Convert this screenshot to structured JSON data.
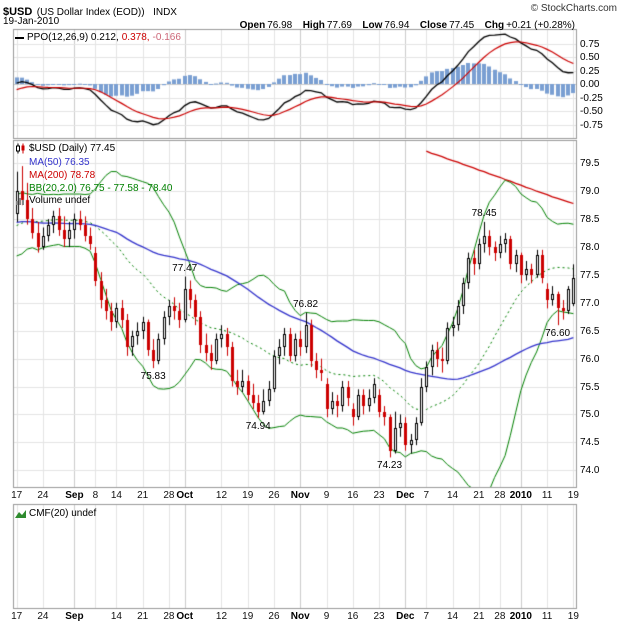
{
  "header": {
    "symbol": "$USD",
    "description": "(US Dollar Index (EOD))",
    "exchange": "INDX",
    "copyright": "© StockCharts.com",
    "date": "19-Jan-2010",
    "quote": {
      "open_label": "Open",
      "open": "76.98",
      "high_label": "High",
      "high": "77.69",
      "low_label": "Low",
      "low": "76.94",
      "close_label": "Close",
      "close": "77.45",
      "chg_label": "Chg",
      "chg": "+0.21 (+0.28%)"
    }
  },
  "ppo_panel": {
    "legend": "PPO(12,26,9) 0.212,",
    "legend_signal": "0.378,",
    "legend_hist": "-0.166"
  },
  "main_panel": {
    "legend_price": "$USD (Daily) 77.45",
    "legend_ma50": "MA(50) 76.35",
    "legend_ma200": "MA(200) 78.78",
    "legend_bb": "BB(20,2.0) 76.75 - 77.58 - 78.40",
    "legend_volume": "Volume undef"
  },
  "cmf_panel": {
    "legend": "CMF(20) undef"
  },
  "chart_data": {
    "type": "candlestick",
    "title": "$USD (US Dollar Index (EOD)) INDX",
    "price_axis": {
      "range": [
        73.7,
        79.9
      ],
      "ticks": [
        79.5,
        79.0,
        78.5,
        78.0,
        77.5,
        77.0,
        76.5,
        76.0,
        75.5,
        75.0,
        74.5,
        74.0
      ],
      "labels": [
        "79.5",
        "79.0",
        "78.5",
        "78.0",
        "77.5",
        "77.0",
        "76.5",
        "76.0",
        "75.5",
        "75.0",
        "74.5",
        "74.0"
      ]
    },
    "ppo_axis": {
      "range": [
        -1.0,
        1.0
      ],
      "ticks": [
        0.75,
        0.5,
        0.25,
        0,
        -0.25,
        -0.5,
        -0.75
      ],
      "labels": [
        "0.75",
        "0.50",
        "0.25",
        "0.00",
        "-0.25",
        "-0.50",
        "-0.75"
      ]
    },
    "x_axis": {
      "ticks": [
        {
          "i": 0,
          "t": "17"
        },
        {
          "i": 5,
          "t": "24"
        },
        {
          "i": 11,
          "t": "Sep",
          "m": 1
        },
        {
          "i": 15,
          "t": "8"
        },
        {
          "i": 19,
          "t": "14"
        },
        {
          "i": 24,
          "t": "21"
        },
        {
          "i": 29,
          "t": "28"
        },
        {
          "i": 32,
          "t": "Oct",
          "m": 1
        },
        {
          "i": 39,
          "t": "12"
        },
        {
          "i": 44,
          "t": "19"
        },
        {
          "i": 49,
          "t": "26"
        },
        {
          "i": 54,
          "t": "Nov",
          "m": 1
        },
        {
          "i": 59,
          "t": "9"
        },
        {
          "i": 64,
          "t": "16"
        },
        {
          "i": 69,
          "t": "23"
        },
        {
          "i": 74,
          "t": "Dec",
          "m": 1
        },
        {
          "i": 78,
          "t": "7"
        },
        {
          "i": 83,
          "t": "14"
        },
        {
          "i": 88,
          "t": "21"
        },
        {
          "i": 92,
          "t": "28"
        },
        {
          "i": 96,
          "t": "2010",
          "m": 1
        },
        {
          "i": 101,
          "t": "11"
        },
        {
          "i": 106,
          "t": "19"
        }
      ],
      "bottom_ticks": [
        {
          "i": 0,
          "t": "17"
        },
        {
          "i": 5,
          "t": "24"
        },
        {
          "i": 11,
          "t": "Sep",
          "m": 1
        },
        {
          "i": 19,
          "t": "14"
        },
        {
          "i": 24,
          "t": "21"
        },
        {
          "i": 29,
          "t": "28"
        },
        {
          "i": 32,
          "t": "Oct",
          "m": 1
        },
        {
          "i": 39,
          "t": "12"
        },
        {
          "i": 44,
          "t": "19"
        },
        {
          "i": 49,
          "t": "26"
        },
        {
          "i": 54,
          "t": "Nov",
          "m": 1
        },
        {
          "i": 59,
          "t": "9"
        },
        {
          "i": 64,
          "t": "16"
        },
        {
          "i": 69,
          "t": "23"
        },
        {
          "i": 74,
          "t": "Dec",
          "m": 1
        },
        {
          "i": 78,
          "t": "7"
        },
        {
          "i": 83,
          "t": "14"
        },
        {
          "i": 88,
          "t": "21"
        },
        {
          "i": 92,
          "t": "28"
        },
        {
          "i": 96,
          "t": "2010",
          "m": 1
        },
        {
          "i": 101,
          "t": "11"
        },
        {
          "i": 106,
          "t": "19"
        }
      ]
    },
    "candles": [
      [
        78.6,
        79.35,
        78.45,
        79.0
      ],
      [
        79.0,
        79.45,
        78.75,
        78.85
      ],
      [
        78.85,
        79.15,
        78.4,
        78.5
      ],
      [
        78.5,
        78.7,
        78.15,
        78.25
      ],
      [
        78.25,
        78.45,
        77.9,
        78.0
      ],
      [
        78.0,
        78.35,
        77.95,
        78.2
      ],
      [
        78.2,
        78.5,
        78.1,
        78.4
      ],
      [
        78.4,
        78.65,
        78.25,
        78.55
      ],
      [
        78.55,
        78.7,
        78.2,
        78.3
      ],
      [
        78.3,
        78.55,
        78.0,
        78.15
      ],
      [
        78.15,
        78.45,
        78.0,
        78.3
      ],
      [
        78.3,
        78.6,
        78.15,
        78.5
      ],
      [
        78.5,
        78.65,
        78.3,
        78.4
      ],
      [
        78.4,
        78.55,
        78.1,
        78.2
      ],
      [
        78.2,
        78.35,
        77.95,
        78.05
      ],
      [
        77.9,
        78.0,
        77.3,
        77.4
      ],
      [
        77.4,
        77.55,
        76.9,
        77.05
      ],
      [
        77.05,
        77.25,
        76.7,
        76.85
      ],
      [
        76.85,
        77.0,
        76.5,
        76.65
      ],
      [
        76.65,
        77.0,
        76.55,
        76.9
      ],
      [
        76.9,
        77.05,
        76.55,
        76.7
      ],
      [
        76.7,
        76.8,
        76.05,
        76.2
      ],
      [
        76.2,
        76.5,
        76.05,
        76.4
      ],
      [
        76.4,
        76.65,
        76.25,
        76.5
      ],
      [
        76.5,
        76.75,
        76.35,
        76.65
      ],
      [
        76.65,
        76.7,
        76.05,
        76.15
      ],
      [
        76.15,
        76.35,
        75.83,
        75.95
      ],
      [
        75.95,
        76.45,
        75.9,
        76.35
      ],
      [
        76.35,
        76.85,
        76.25,
        76.75
      ],
      [
        76.75,
        77.05,
        76.6,
        76.95
      ],
      [
        76.95,
        77.1,
        76.7,
        76.85
      ],
      [
        76.85,
        77.0,
        76.55,
        76.7
      ],
      [
        76.7,
        77.47,
        76.65,
        77.25
      ],
      [
        77.25,
        77.4,
        76.9,
        77.05
      ],
      [
        77.05,
        77.15,
        76.6,
        76.75
      ],
      [
        76.75,
        76.85,
        76.1,
        76.25
      ],
      [
        76.25,
        76.45,
        75.95,
        76.1
      ],
      [
        76.1,
        76.25,
        75.8,
        75.95
      ],
      [
        75.95,
        76.45,
        75.9,
        76.35
      ],
      [
        76.35,
        76.6,
        76.2,
        76.45
      ],
      [
        76.45,
        76.55,
        76.05,
        76.2
      ],
      [
        76.2,
        76.3,
        75.5,
        75.6
      ],
      [
        75.6,
        75.8,
        75.35,
        75.5
      ],
      [
        75.5,
        75.8,
        75.4,
        75.6
      ],
      [
        75.6,
        75.7,
        75.25,
        75.35
      ],
      [
        75.35,
        75.55,
        75.1,
        75.2
      ],
      [
        75.2,
        75.35,
        74.94,
        75.05
      ],
      [
        75.05,
        75.45,
        75.0,
        75.25
      ],
      [
        75.25,
        75.6,
        75.15,
        75.45
      ],
      [
        75.45,
        76.15,
        75.4,
        76.05
      ],
      [
        76.05,
        76.35,
        75.9,
        76.2
      ],
      [
        76.2,
        76.55,
        76.05,
        76.45
      ],
      [
        76.45,
        76.55,
        75.95,
        76.05
      ],
      [
        76.05,
        76.45,
        75.95,
        76.35
      ],
      [
        76.35,
        76.5,
        76.05,
        76.2
      ],
      [
        76.2,
        76.82,
        76.1,
        76.6
      ],
      [
        76.6,
        76.7,
        75.85,
        75.95
      ],
      [
        75.95,
        76.1,
        75.65,
        75.8
      ],
      [
        75.8,
        76.0,
        75.6,
        75.75
      ],
      [
        75.55,
        75.65,
        74.95,
        75.1
      ],
      [
        75.1,
        75.4,
        75.0,
        75.25
      ],
      [
        75.25,
        75.35,
        74.95,
        75.15
      ],
      [
        75.15,
        75.6,
        75.05,
        75.5
      ],
      [
        75.5,
        75.6,
        75.15,
        75.3
      ],
      [
        75.1,
        75.2,
        74.8,
        74.95
      ],
      [
        74.95,
        75.45,
        74.9,
        75.35
      ],
      [
        75.35,
        75.45,
        75.0,
        75.15
      ],
      [
        75.15,
        75.45,
        75.05,
        75.3
      ],
      [
        75.3,
        75.65,
        75.2,
        75.55
      ],
      [
        75.35,
        75.45,
        74.95,
        75.05
      ],
      [
        75.05,
        75.15,
        74.8,
        74.95
      ],
      [
        74.95,
        75.0,
        74.23,
        74.35
      ],
      [
        74.35,
        75.05,
        74.3,
        74.75
      ],
      [
        74.75,
        75.0,
        74.6,
        74.85
      ],
      [
        74.85,
        74.95,
        74.35,
        74.45
      ],
      [
        74.45,
        74.65,
        74.3,
        74.55
      ],
      [
        74.55,
        74.95,
        74.45,
        74.85
      ],
      [
        74.85,
        75.65,
        74.8,
        75.5
      ],
      [
        75.5,
        75.95,
        75.4,
        75.85
      ],
      [
        75.85,
        76.25,
        75.7,
        76.15
      ],
      [
        76.15,
        76.3,
        75.85,
        76.0
      ],
      [
        76.0,
        76.2,
        75.75,
        75.95
      ],
      [
        75.95,
        76.65,
        75.9,
        76.55
      ],
      [
        76.55,
        76.75,
        76.4,
        76.6
      ],
      [
        76.6,
        77.05,
        76.5,
        76.95
      ],
      [
        76.95,
        77.45,
        76.8,
        77.35
      ],
      [
        77.35,
        77.9,
        77.25,
        77.8
      ],
      [
        77.8,
        77.95,
        77.5,
        77.7
      ],
      [
        77.7,
        78.15,
        77.6,
        78.05
      ],
      [
        78.05,
        78.45,
        77.9,
        78.2
      ],
      [
        78.2,
        78.3,
        77.85,
        78.0
      ],
      [
        78.0,
        78.1,
        77.75,
        77.9
      ],
      [
        77.9,
        78.2,
        77.8,
        78.05
      ],
      [
        78.05,
        78.25,
        77.9,
        78.15
      ],
      [
        78.15,
        78.2,
        77.6,
        77.7
      ],
      [
        77.7,
        77.95,
        77.55,
        77.85
      ],
      [
        77.85,
        77.9,
        77.35,
        77.5
      ],
      [
        77.5,
        77.75,
        77.4,
        77.6
      ],
      [
        77.6,
        77.7,
        77.35,
        77.5
      ],
      [
        77.5,
        77.95,
        77.45,
        77.85
      ],
      [
        77.85,
        77.95,
        77.35,
        77.45
      ],
      [
        77.25,
        77.35,
        76.9,
        77.05
      ],
      [
        77.05,
        77.3,
        76.95,
        77.15
      ],
      [
        77.15,
        77.2,
        76.6,
        76.9
      ],
      [
        76.9,
        77.05,
        76.7,
        76.85
      ],
      [
        76.85,
        77.3,
        76.8,
        77.25
      ],
      [
        76.98,
        77.69,
        76.94,
        77.45
      ]
    ],
    "pre_closes": [
      79.5,
      79.3,
      79.1,
      78.9,
      78.7,
      78.5,
      78.3,
      78.1,
      77.9,
      77.8,
      77.9,
      78.0,
      77.9,
      78.1,
      78.2,
      78.0,
      78.2,
      78.3,
      78.2,
      78.4,
      78.3,
      78.5,
      78.4,
      78.6,
      78.5,
      78.7,
      78.6,
      78.5,
      78.7,
      78.6
    ],
    "indicators": {
      "ppo": [
        12,
        26,
        9
      ]
    },
    "overlays": {
      "ma50_period": 50,
      "bb_period": 20,
      "bb_mult": 2,
      "ma200": {
        "start_index": 78,
        "values": [
          79.72,
          79.68,
          79.65,
          79.62,
          79.58,
          79.55,
          79.52,
          79.48,
          79.45,
          79.42,
          79.38,
          79.35,
          79.31,
          79.28,
          79.25,
          79.21,
          79.18,
          79.14,
          79.11,
          79.07,
          79.04,
          79.0,
          78.97,
          78.94,
          78.9,
          78.87,
          78.84,
          78.81,
          78.78
        ]
      }
    },
    "annotations": [
      {
        "text": "75.83",
        "index": 26,
        "price": 75.83,
        "place": "below"
      },
      {
        "text": "77.47",
        "index": 32,
        "price": 77.47,
        "place": "above"
      },
      {
        "text": "74.94",
        "index": 46,
        "price": 74.94,
        "place": "below"
      },
      {
        "text": "76.82",
        "index": 55,
        "price": 76.82,
        "place": "above"
      },
      {
        "text": "74.23",
        "index": 71,
        "price": 74.23,
        "place": "below"
      },
      {
        "text": "78.45",
        "index": 89,
        "price": 78.45,
        "place": "above"
      },
      {
        "text": "76.60",
        "index": 103,
        "price": 76.6,
        "place": "below"
      }
    ],
    "colors": {
      "bg": "#ffffff",
      "border": "#999999",
      "grid": "#e4e4e4",
      "grid_month": "#cccccc",
      "up": "#000000",
      "up_fill": "#ffffff",
      "down": "#cc0000",
      "ma50": "#3333cc",
      "ma200": "#cc0000",
      "bb": "#008000",
      "ppo_line": "#000000",
      "ppo_signal": "#cc0000",
      "ppo_hist": "#7a9fd2",
      "ppo_hist_label": "#cc6677",
      "cmf_icon": "#2e8b2e",
      "volume_icon": "#888888"
    }
  }
}
